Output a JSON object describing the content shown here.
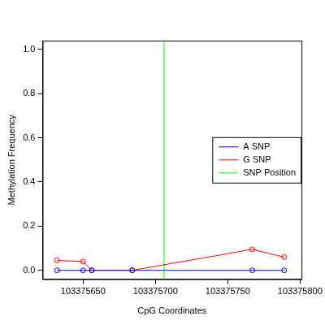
{
  "chart_data": {
    "type": "line",
    "x_label": "CpG Coordinates",
    "y_label": "Methylation Frequency",
    "series": [
      {
        "name": "A SNP",
        "color": "#0000ff",
        "marker": "circle",
        "line_style": "solid",
        "x": [
          103375632,
          103375650,
          103375656,
          103375684,
          103375767,
          103375789
        ],
        "values": [
          0,
          0,
          0,
          0,
          0,
          0
        ]
      },
      {
        "name": "G SNP",
        "color": "#ff0000",
        "marker": "circle",
        "line_style": "solid",
        "x": [
          103375632,
          103375650,
          103375656,
          103375684,
          103375767,
          103375789
        ],
        "values": [
          0.045,
          0.04,
          0,
          0,
          0.095,
          0.06
        ]
      },
      {
        "name": "SNP Position",
        "color": "#00ff00",
        "type": "vline",
        "x": 103375706
      }
    ],
    "xlim": [
      103375622,
      103375801
    ],
    "xticks": [
      103375650,
      103375700,
      103375750,
      103375800
    ],
    "ylim": [
      -0.04,
      1.04
    ],
    "yticks": [
      {
        "value": 0,
        "label": "0.0"
      },
      0.2,
      0.4,
      0.6,
      0.8,
      {
        "value": 1,
        "label": "1.0"
      }
    ],
    "grid": false,
    "legend": "right"
  }
}
